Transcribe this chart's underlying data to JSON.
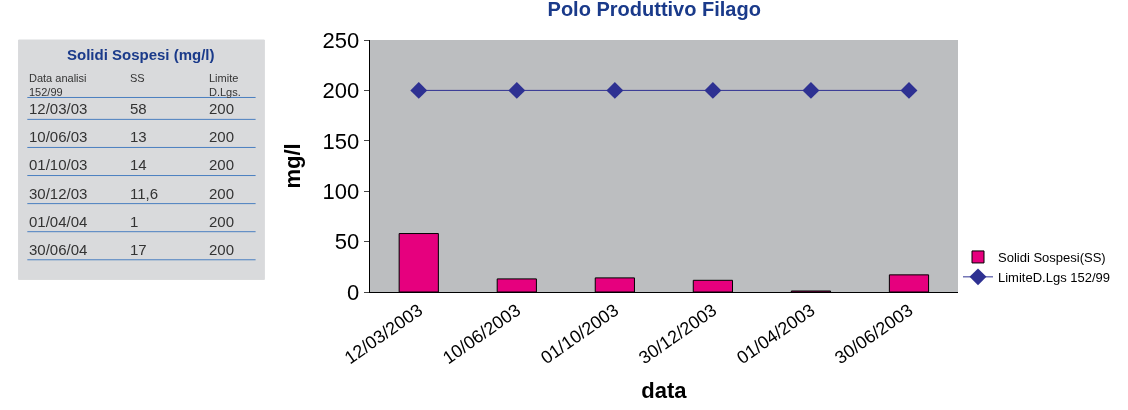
{
  "chart_data": [
    {
      "type": "other",
      "title": "Solidi Sospesi (mg/l)",
      "annotations": [
        "Data analisi\n152/99",
        "SS",
        "Limite\nD.Lgs.",
        "12/03/03",
        "58",
        "200",
        "10/06/03",
        "13",
        "200",
        "01/10/03",
        "14",
        "200",
        "30/12/03",
        "11,6",
        "200",
        "01/04/04",
        "1",
        "200",
        "30/06/04",
        "17",
        "200"
      ]
    },
    {
      "type": "bar",
      "title": "Polo Produttivo Filago",
      "xlabel": "data",
      "ylabel": "mg/l",
      "categories": [
        "12/03/2003",
        "10/06/2003",
        "01/10/2003",
        "30/12/2003",
        "01/04/2003",
        "30/06/2003"
      ],
      "series": [
        {
          "name": "Solidi Sospesi(SS)",
          "type": "bar",
          "color": "#e6007e",
          "values": [
            58,
            13,
            14,
            11.6,
            1,
            17
          ]
        },
        {
          "name": "LimiteD.Lgs 152/99",
          "type": "line",
          "color": "#2e3192",
          "marker": "diamond",
          "values": [
            200,
            200,
            200,
            200,
            200,
            200
          ]
        }
      ],
      "ylim": [
        0,
        250
      ],
      "yticks": [
        0,
        50,
        100,
        150,
        200,
        250
      ],
      "grid": false,
      "legend": "bottom right"
    }
  ]
}
